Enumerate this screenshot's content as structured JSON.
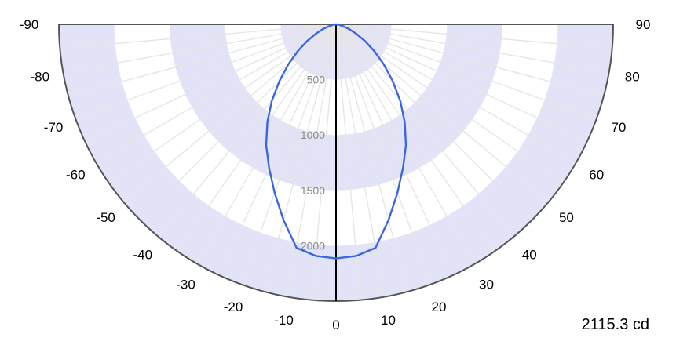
{
  "chart_data": {
    "type": "polar",
    "subtype": "luminous intensity distribution (half polar)",
    "unit": "cd",
    "peak_label": "2115.3 cd",
    "angle_ticks": [
      -90,
      -80,
      -70,
      -60,
      -50,
      -40,
      -30,
      -20,
      -10,
      0,
      10,
      20,
      30,
      40,
      50,
      60,
      70,
      80,
      90
    ],
    "angle_tick_labels": [
      "-90",
      "-80",
      "-70",
      "-60",
      "-50",
      "-40",
      "-30",
      "-20",
      "-10",
      "0",
      "10",
      "20",
      "30",
      "40",
      "50",
      "60",
      "70",
      "80",
      "90"
    ],
    "radial_ticks": [
      500,
      1000,
      1500,
      2000
    ],
    "radial_tick_labels": [
      "500",
      "1000",
      "1500",
      "2000"
    ],
    "radial_max": 2500,
    "series": [
      {
        "angles": [
          0,
          5,
          10,
          15,
          20,
          25,
          30,
          35,
          40,
          45,
          50,
          55,
          60,
          65,
          70,
          75,
          80,
          85,
          90
        ],
        "values": [
          2115,
          2100,
          2050,
          1830,
          1620,
          1430,
          1260,
          1080,
          900,
          720,
          560,
          420,
          300,
          200,
          125,
          70,
          30,
          10,
          0
        ],
        "symmetric": true
      }
    ],
    "colors": {
      "band": "#e3e3f8",
      "grid": "#e6e6e6",
      "outline": "#555555",
      "axis": "#000000",
      "curve": "#3b66e0"
    }
  }
}
